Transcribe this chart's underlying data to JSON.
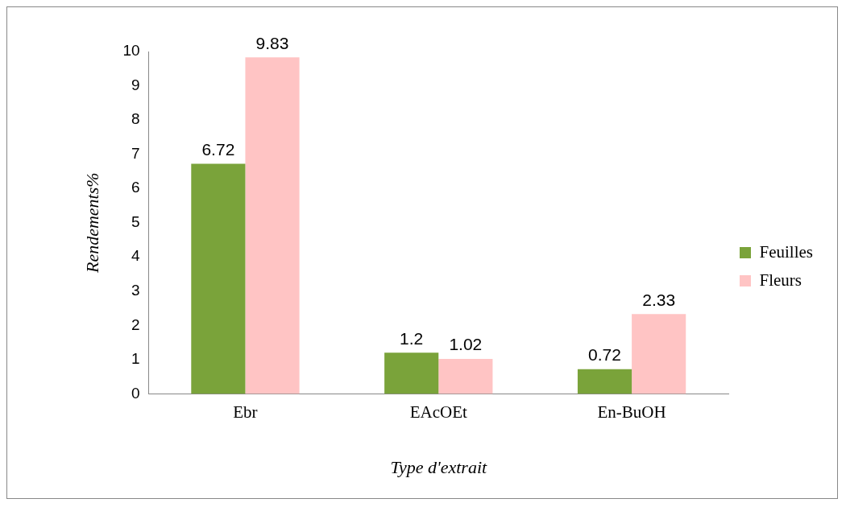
{
  "chart_data": {
    "type": "bar",
    "xlabel": "Type d'extrait",
    "ylabel": "Rendements%",
    "categories": [
      "Ebr",
      "EAcOEt",
      "En-BuOH"
    ],
    "series": [
      {
        "name": "Feuilles",
        "color": "#7aa33a",
        "values": [
          6.72,
          1.2,
          0.72
        ]
      },
      {
        "name": "Fleurs",
        "color": "#ffc4c4",
        "values": [
          9.83,
          1.02,
          2.33
        ]
      }
    ],
    "ylim": [
      0,
      10
    ],
    "yticks": [
      0,
      1,
      2,
      3,
      4,
      5,
      6,
      7,
      8,
      9,
      10
    ],
    "grid": false,
    "legend": "right",
    "data_labels": true
  }
}
